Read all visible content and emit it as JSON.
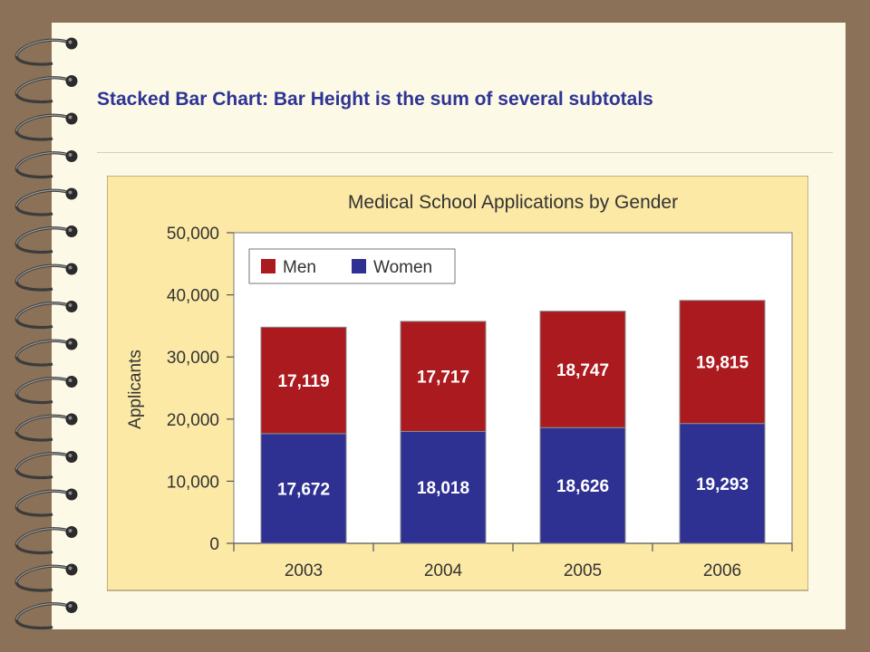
{
  "slide": {
    "title": "Stacked Bar Chart: Bar Height is the sum of several subtotals"
  },
  "colors": {
    "background": "#8a7157",
    "page": "#fcf9e6",
    "title_text": "#2e3495",
    "chart_panel": "#fce9a6",
    "men": "#ab1a1e",
    "women": "#2e3192"
  },
  "chart_data": {
    "type": "bar",
    "stacked": true,
    "title": "Medical School Applications by Gender",
    "xlabel": "",
    "ylabel": "Applicants",
    "categories": [
      "2003",
      "2004",
      "2005",
      "2006"
    ],
    "series": [
      {
        "name": "Women",
        "values": [
          17672,
          18018,
          18626,
          19293
        ],
        "labels": [
          "17,672",
          "18,018",
          "18,626",
          "19,293"
        ]
      },
      {
        "name": "Men",
        "values": [
          17119,
          17717,
          18747,
          19815
        ],
        "labels": [
          "17,119",
          "17,717",
          "18,747",
          "19,815"
        ]
      }
    ],
    "ylim": [
      0,
      50000
    ],
    "yticks": [
      0,
      10000,
      20000,
      30000,
      40000,
      50000
    ],
    "ytick_labels": [
      "0",
      "10,000",
      "20,000",
      "30,000",
      "40,000",
      "50,000"
    ],
    "grid": false,
    "legend_position": "top-left",
    "legend_order": [
      "Men",
      "Women"
    ]
  }
}
